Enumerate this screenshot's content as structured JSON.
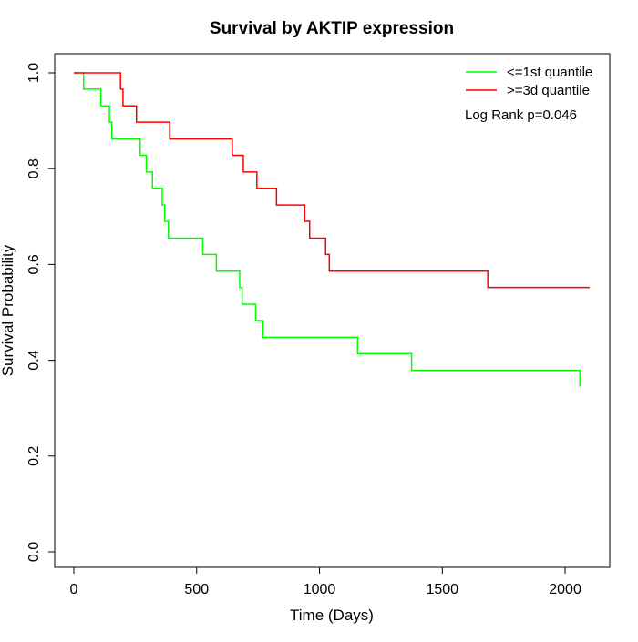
{
  "chart_data": {
    "type": "line",
    "title": "Survival by AKTIP expression",
    "xlabel": "Time (Days)",
    "ylabel": "Survival Probability",
    "xlim": [
      0,
      2100
    ],
    "ylim": [
      0,
      1
    ],
    "x_ticks": [
      0,
      500,
      1000,
      1500,
      2000
    ],
    "y_ticks": [
      0.0,
      0.2,
      0.4,
      0.6,
      0.8,
      1.0
    ],
    "x_tick_labels": [
      "0",
      "500",
      "1000",
      "1500",
      "2000"
    ],
    "y_tick_labels": [
      "0.0",
      "0.2",
      "0.4",
      "0.6",
      "0.8",
      "1.0"
    ],
    "grid": false,
    "legend_position": "top-right",
    "annotation": "Log Rank p=0.046",
    "series": [
      {
        "name": "<=1st quantile",
        "color": "#00ff00",
        "x": [
          0,
          40,
          110,
          145,
          155,
          270,
          295,
          320,
          360,
          370,
          385,
          525,
          580,
          675,
          685,
          740,
          770,
          1155,
          1375,
          2060
        ],
        "y": [
          1.0,
          0.966,
          0.931,
          0.897,
          0.862,
          0.828,
          0.793,
          0.759,
          0.724,
          0.69,
          0.655,
          0.621,
          0.586,
          0.552,
          0.517,
          0.483,
          0.448,
          0.414,
          0.379,
          0.345
        ]
      },
      {
        "name": ">=3d quantile",
        "color": "#ff0000",
        "x": [
          0,
          190,
          200,
          255,
          390,
          645,
          690,
          745,
          825,
          940,
          960,
          1025,
          1040,
          1685,
          2100
        ],
        "y": [
          1.0,
          0.966,
          0.931,
          0.897,
          0.862,
          0.828,
          0.793,
          0.759,
          0.724,
          0.69,
          0.655,
          0.621,
          0.586,
          0.552,
          0.552
        ]
      }
    ]
  }
}
